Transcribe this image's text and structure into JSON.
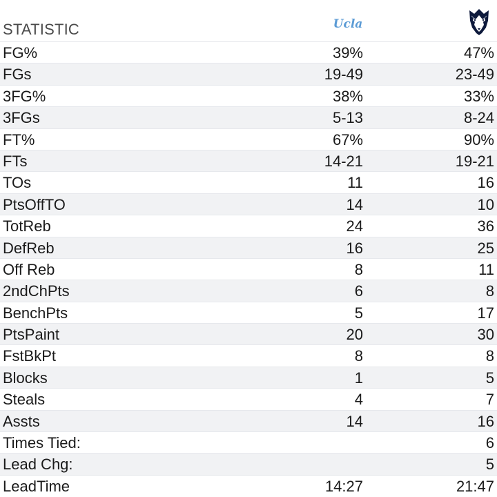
{
  "header": {
    "label": "STATISTIC",
    "team_a": {
      "logo_text": "Ucla",
      "logo_icon": "ucla-wordmark-logo",
      "color": "#5b9bd5"
    },
    "team_b": {
      "logo_icon": "husky-head-logo",
      "color": "#0e1a3c"
    }
  },
  "rows": [
    {
      "name": "FG%",
      "a": "39%",
      "b": "47%"
    },
    {
      "name": "FGs",
      "a": "19-49",
      "b": "23-49"
    },
    {
      "name": "3FG%",
      "a": "38%",
      "b": "33%"
    },
    {
      "name": "3FGs",
      "a": "5-13",
      "b": "8-24"
    },
    {
      "name": "FT%",
      "a": "67%",
      "b": "90%"
    },
    {
      "name": "FTs",
      "a": "14-21",
      "b": "19-21"
    },
    {
      "name": "TOs",
      "a": "11",
      "b": "16"
    },
    {
      "name": "PtsOffTO",
      "a": "14",
      "b": "10"
    },
    {
      "name": "TotReb",
      "a": "24",
      "b": "36"
    },
    {
      "name": "DefReb",
      "a": "16",
      "b": "25"
    },
    {
      "name": "Off Reb",
      "a": "8",
      "b": "11"
    },
    {
      "name": "2ndChPts",
      "a": "6",
      "b": "8"
    },
    {
      "name": "BenchPts",
      "a": "5",
      "b": "17"
    },
    {
      "name": "PtsPaint",
      "a": "20",
      "b": "30"
    },
    {
      "name": "FstBkPt",
      "a": "8",
      "b": "8"
    },
    {
      "name": "Blocks",
      "a": "1",
      "b": "5"
    },
    {
      "name": "Steals",
      "a": "4",
      "b": "7"
    },
    {
      "name": "Assts",
      "a": "14",
      "b": "16"
    },
    {
      "name": "Times Tied:",
      "a": "",
      "b": "6"
    },
    {
      "name": "Lead Chg:",
      "a": "",
      "b": "5"
    },
    {
      "name": "LeadTime",
      "a": "14:27",
      "b": "21:47"
    }
  ]
}
